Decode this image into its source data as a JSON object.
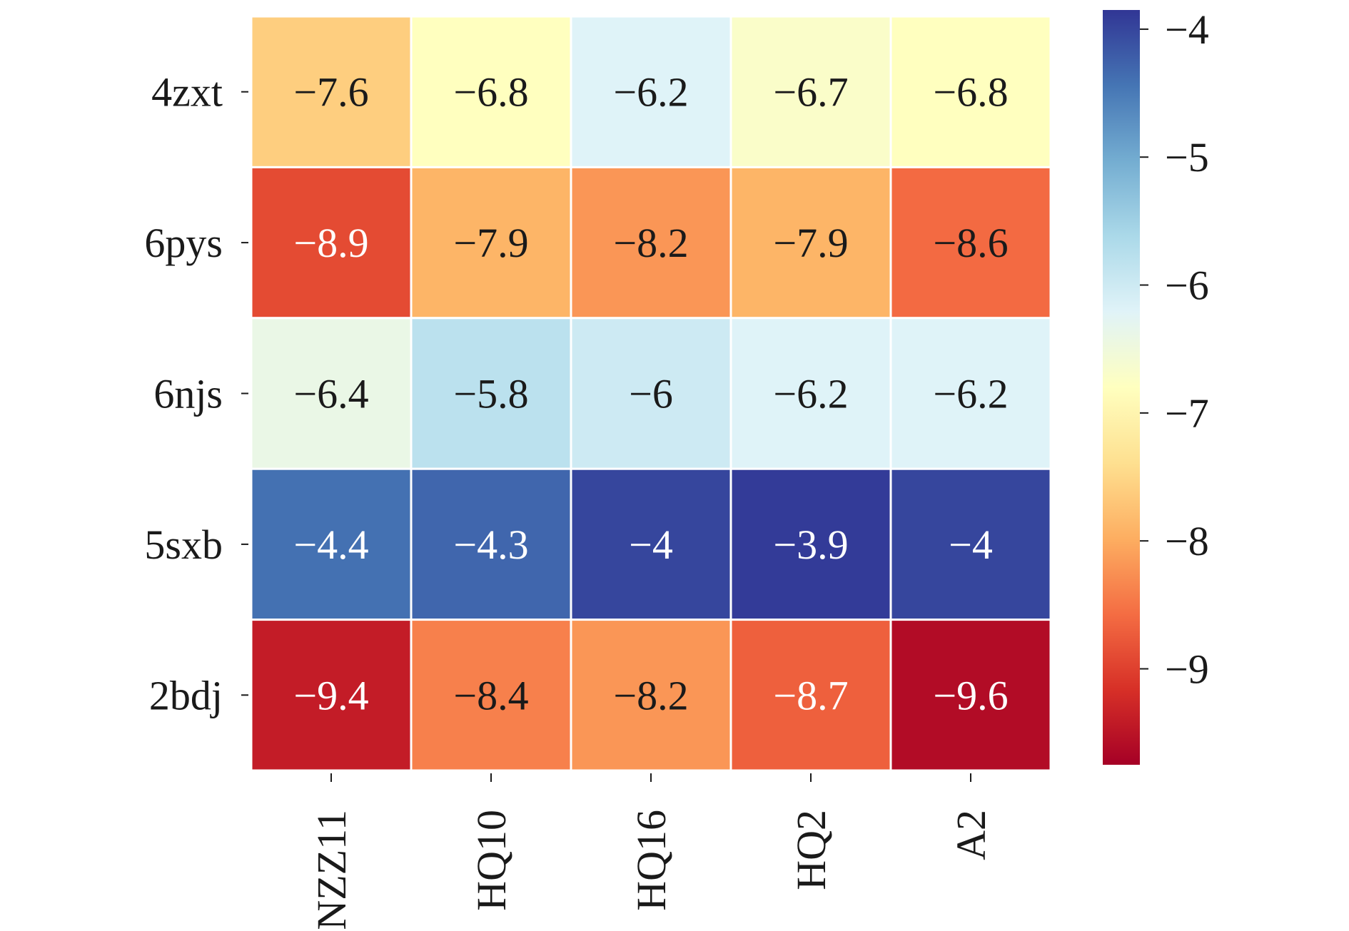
{
  "chart_data": {
    "type": "heatmap",
    "title": "",
    "xlabel": "",
    "ylabel": "",
    "rows": [
      "4zxt",
      "6pys",
      "6njs",
      "5sxb",
      "2bdj"
    ],
    "columns": [
      "NZZ11",
      "HQ10",
      "HQ16",
      "HQ2",
      "A2"
    ],
    "values": [
      [
        -7.6,
        -6.8,
        -6.2,
        -6.7,
        -6.8
      ],
      [
        -8.9,
        -7.9,
        -8.2,
        -7.9,
        -8.6
      ],
      [
        -6.4,
        -5.8,
        -6,
        -6.2,
        -6.2
      ],
      [
        -4.4,
        -4.3,
        -4,
        -3.9,
        -4
      ],
      [
        -9.4,
        -8.4,
        -8.2,
        -8.7,
        -9.6
      ]
    ],
    "cell_labels": [
      [
        "−7.6",
        "−6.8",
        "−6.2",
        "−6.7",
        "−6.8"
      ],
      [
        "−8.9",
        "−7.9",
        "−8.2",
        "−7.9",
        "−8.6"
      ],
      [
        "−6.4",
        "−5.8",
        "−6",
        "−6.2",
        "−6.2"
      ],
      [
        "−4.4",
        "−4.3",
        "−4",
        "−3.9",
        "−4"
      ],
      [
        "−9.4",
        "−8.4",
        "−8.2",
        "−8.7",
        "−9.6"
      ]
    ],
    "colormap": "RdYlBu",
    "colorbar": {
      "range": [
        -9.75,
        -3.85
      ],
      "ticks": [
        -4,
        -5,
        -6,
        -7,
        -8,
        -9
      ],
      "tick_labels": [
        "−4",
        "−5",
        "−6",
        "−7",
        "−8",
        "−9"
      ],
      "placement": "right"
    },
    "grid_line_color": "#ffffff",
    "colormap_stops": [
      "#a50026",
      "#d73027",
      "#f46d43",
      "#fdae61",
      "#fee090",
      "#ffffbf",
      "#e0f3f8",
      "#abd9e9",
      "#74add1",
      "#4575b4",
      "#313695"
    ]
  }
}
